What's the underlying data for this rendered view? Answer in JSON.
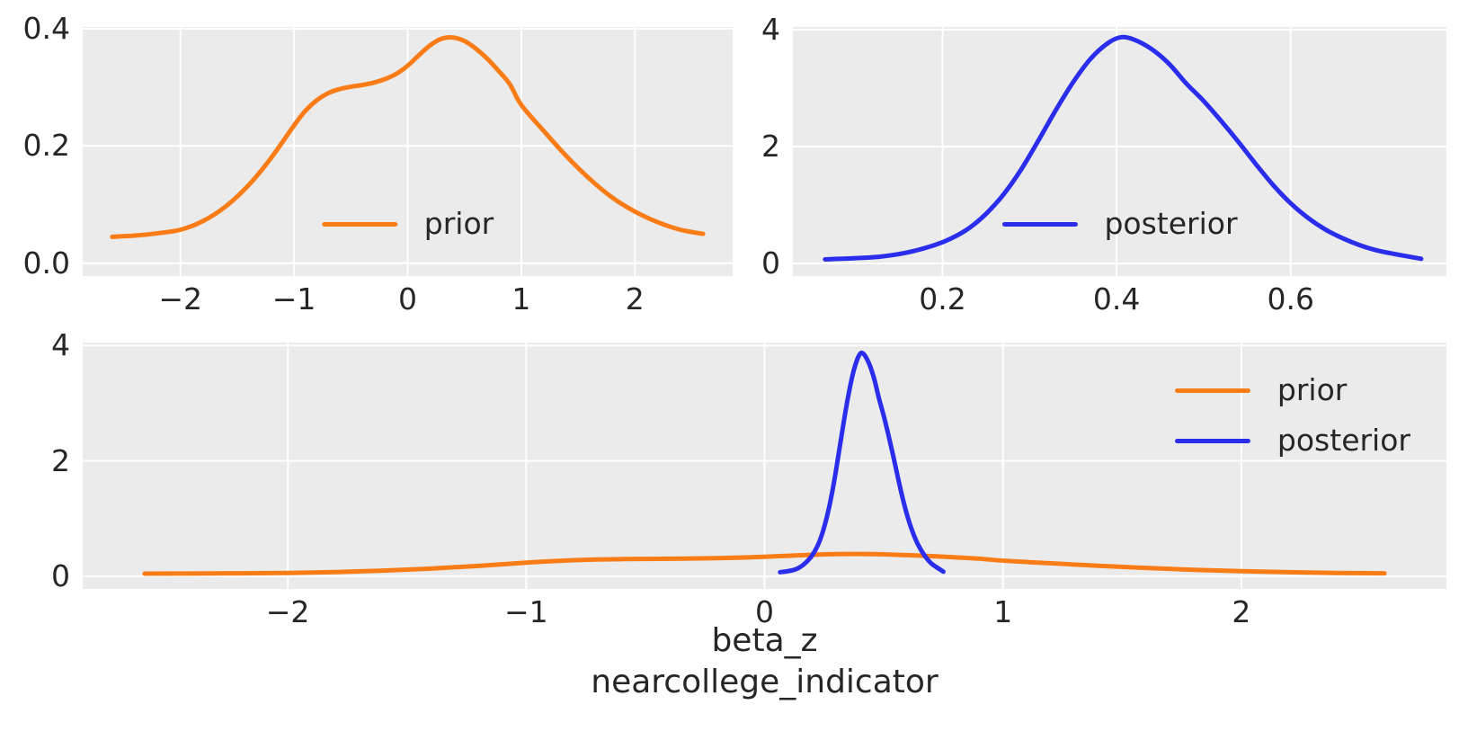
{
  "colors": {
    "prior": "#fa7c17",
    "posterior": "#2a2eec",
    "panel_bg": "#ebebeb",
    "grid": "#ffffff",
    "text": "#262626"
  },
  "legend_labels": {
    "prior": "prior",
    "posterior": "posterior"
  },
  "chart_data": [
    {
      "type": "line",
      "panel": "prior-marginal-top-left",
      "title": "",
      "xlabel": "",
      "ylabel": "",
      "grid": true,
      "legend": {
        "position": "lower center",
        "entries": [
          "prior"
        ]
      },
      "xlim": [
        -2.86,
        2.86
      ],
      "ylim": [
        -0.022,
        0.403
      ],
      "xticks": [
        {
          "v": -2,
          "label": "−2"
        },
        {
          "v": -1,
          "label": "−1"
        },
        {
          "v": 0,
          "label": "0"
        },
        {
          "v": 1,
          "label": "1"
        },
        {
          "v": 2,
          "label": "2"
        }
      ],
      "yticks": [
        {
          "v": 0.0,
          "label": "0.0"
        },
        {
          "v": 0.2,
          "label": "0.2"
        },
        {
          "v": 0.4,
          "label": "0.4"
        }
      ],
      "series": [
        {
          "name": "prior",
          "color": "#fa7c17",
          "points": [
            [
              -2.6,
              0.045
            ],
            [
              -2.4,
              0.047
            ],
            [
              -2.2,
              0.051
            ],
            [
              -2.0,
              0.057
            ],
            [
              -1.8,
              0.072
            ],
            [
              -1.6,
              0.097
            ],
            [
              -1.4,
              0.133
            ],
            [
              -1.2,
              0.18
            ],
            [
              -1.0,
              0.235
            ],
            [
              -0.9,
              0.26
            ],
            [
              -0.8,
              0.278
            ],
            [
              -0.7,
              0.29
            ],
            [
              -0.6,
              0.297
            ],
            [
              -0.5,
              0.301
            ],
            [
              -0.4,
              0.304
            ],
            [
              -0.3,
              0.308
            ],
            [
              -0.2,
              0.314
            ],
            [
              -0.1,
              0.323
            ],
            [
              0.0,
              0.337
            ],
            [
              0.1,
              0.355
            ],
            [
              0.2,
              0.372
            ],
            [
              0.3,
              0.383
            ],
            [
              0.4,
              0.385
            ],
            [
              0.5,
              0.379
            ],
            [
              0.6,
              0.366
            ],
            [
              0.7,
              0.349
            ],
            [
              0.8,
              0.328
            ],
            [
              0.9,
              0.305
            ],
            [
              1.0,
              0.27
            ],
            [
              1.2,
              0.225
            ],
            [
              1.4,
              0.182
            ],
            [
              1.6,
              0.144
            ],
            [
              1.8,
              0.112
            ],
            [
              2.0,
              0.088
            ],
            [
              2.2,
              0.07
            ],
            [
              2.4,
              0.057
            ],
            [
              2.6,
              0.05
            ]
          ]
        }
      ]
    },
    {
      "type": "line",
      "panel": "posterior-marginal-top-right",
      "title": "",
      "xlabel": "",
      "ylabel": "",
      "grid": true,
      "legend": {
        "position": "lower center",
        "entries": [
          "posterior"
        ]
      },
      "xlim": [
        0.028,
        0.779
      ],
      "ylim": [
        -0.215,
        4.046
      ],
      "xticks": [
        {
          "v": 0.2,
          "label": "0.2"
        },
        {
          "v": 0.4,
          "label": "0.4"
        },
        {
          "v": 0.6,
          "label": "0.6"
        }
      ],
      "yticks": [
        {
          "v": 0,
          "label": "0"
        },
        {
          "v": 2,
          "label": "2"
        },
        {
          "v": 4,
          "label": "4"
        }
      ],
      "series": [
        {
          "name": "posterior",
          "color": "#2a2eec",
          "points": [
            [
              0.065,
              0.07
            ],
            [
              0.1,
              0.09
            ],
            [
              0.13,
              0.12
            ],
            [
              0.16,
              0.19
            ],
            [
              0.19,
              0.31
            ],
            [
              0.21,
              0.43
            ],
            [
              0.23,
              0.6
            ],
            [
              0.25,
              0.85
            ],
            [
              0.27,
              1.18
            ],
            [
              0.29,
              1.6
            ],
            [
              0.31,
              2.1
            ],
            [
              0.33,
              2.62
            ],
            [
              0.35,
              3.1
            ],
            [
              0.37,
              3.5
            ],
            [
              0.39,
              3.77
            ],
            [
              0.405,
              3.87
            ],
            [
              0.42,
              3.83
            ],
            [
              0.44,
              3.67
            ],
            [
              0.46,
              3.42
            ],
            [
              0.48,
              3.08
            ],
            [
              0.5,
              2.78
            ],
            [
              0.52,
              2.44
            ],
            [
              0.54,
              2.08
            ],
            [
              0.56,
              1.7
            ],
            [
              0.58,
              1.34
            ],
            [
              0.6,
              1.03
            ],
            [
              0.62,
              0.78
            ],
            [
              0.64,
              0.58
            ],
            [
              0.66,
              0.43
            ],
            [
              0.68,
              0.31
            ],
            [
              0.7,
              0.22
            ],
            [
              0.72,
              0.16
            ],
            [
              0.75,
              0.08
            ]
          ]
        }
      ]
    },
    {
      "type": "line",
      "panel": "prior-posterior-overlay-bottom",
      "title": "",
      "xlabel": "beta_z\nnearcollege_indicator",
      "xlabel_lines": [
        "beta_z",
        "nearcollege_indicator"
      ],
      "ylabel": "",
      "grid": true,
      "legend": {
        "position": "upper right",
        "entries": [
          "prior",
          "posterior"
        ]
      },
      "xlim": [
        -2.86,
        2.86
      ],
      "ylim": [
        -0.22,
        4.05
      ],
      "xticks": [
        {
          "v": -2,
          "label": "−2"
        },
        {
          "v": -1,
          "label": "−1"
        },
        {
          "v": 0,
          "label": "0"
        },
        {
          "v": 1,
          "label": "1"
        },
        {
          "v": 2,
          "label": "2"
        }
      ],
      "yticks": [
        {
          "v": 0,
          "label": "0"
        },
        {
          "v": 2,
          "label": "2"
        },
        {
          "v": 4,
          "label": "4"
        }
      ],
      "series": [
        {
          "name": "prior",
          "color": "#fa7c17",
          "points": [
            [
              -2.6,
              0.045
            ],
            [
              -2.4,
              0.047
            ],
            [
              -2.2,
              0.051
            ],
            [
              -2.0,
              0.057
            ],
            [
              -1.8,
              0.072
            ],
            [
              -1.6,
              0.097
            ],
            [
              -1.4,
              0.133
            ],
            [
              -1.2,
              0.18
            ],
            [
              -1.0,
              0.235
            ],
            [
              -0.9,
              0.26
            ],
            [
              -0.8,
              0.278
            ],
            [
              -0.7,
              0.29
            ],
            [
              -0.6,
              0.297
            ],
            [
              -0.5,
              0.301
            ],
            [
              -0.4,
              0.304
            ],
            [
              -0.3,
              0.308
            ],
            [
              -0.2,
              0.314
            ],
            [
              -0.1,
              0.323
            ],
            [
              0.0,
              0.337
            ],
            [
              0.1,
              0.355
            ],
            [
              0.2,
              0.372
            ],
            [
              0.3,
              0.383
            ],
            [
              0.4,
              0.385
            ],
            [
              0.5,
              0.379
            ],
            [
              0.6,
              0.366
            ],
            [
              0.7,
              0.349
            ],
            [
              0.8,
              0.328
            ],
            [
              0.9,
              0.305
            ],
            [
              1.0,
              0.27
            ],
            [
              1.2,
              0.225
            ],
            [
              1.4,
              0.182
            ],
            [
              1.6,
              0.144
            ],
            [
              1.8,
              0.112
            ],
            [
              2.0,
              0.088
            ],
            [
              2.2,
              0.07
            ],
            [
              2.4,
              0.057
            ],
            [
              2.6,
              0.05
            ]
          ]
        },
        {
          "name": "posterior",
          "color": "#2a2eec",
          "points": [
            [
              0.065,
              0.07
            ],
            [
              0.1,
              0.09
            ],
            [
              0.13,
              0.12
            ],
            [
              0.16,
              0.19
            ],
            [
              0.19,
              0.31
            ],
            [
              0.21,
              0.43
            ],
            [
              0.23,
              0.6
            ],
            [
              0.25,
              0.85
            ],
            [
              0.27,
              1.18
            ],
            [
              0.29,
              1.6
            ],
            [
              0.31,
              2.1
            ],
            [
              0.33,
              2.62
            ],
            [
              0.35,
              3.1
            ],
            [
              0.37,
              3.5
            ],
            [
              0.39,
              3.77
            ],
            [
              0.405,
              3.87
            ],
            [
              0.42,
              3.83
            ],
            [
              0.44,
              3.67
            ],
            [
              0.46,
              3.42
            ],
            [
              0.48,
              3.08
            ],
            [
              0.5,
              2.78
            ],
            [
              0.52,
              2.44
            ],
            [
              0.54,
              2.08
            ],
            [
              0.56,
              1.7
            ],
            [
              0.58,
              1.34
            ],
            [
              0.6,
              1.03
            ],
            [
              0.62,
              0.78
            ],
            [
              0.64,
              0.58
            ],
            [
              0.66,
              0.43
            ],
            [
              0.68,
              0.31
            ],
            [
              0.7,
              0.22
            ],
            [
              0.72,
              0.16
            ],
            [
              0.75,
              0.08
            ]
          ]
        }
      ]
    }
  ]
}
